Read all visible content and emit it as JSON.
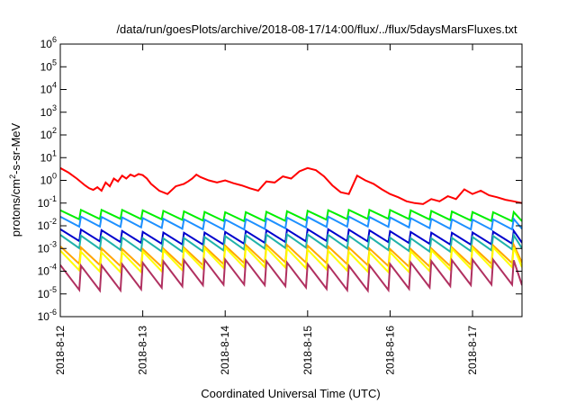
{
  "chart_data": {
    "type": "line",
    "title": "/data/run/goesPlots/archive/2018-08-17/14:00/flux/../flux/5daysMarsFluxes.txt",
    "xlabel": "Coordinated Universal Time (UTC)",
    "ylabel": {
      "pre": "protons/cm",
      "sup": "2",
      "post": "-s-sr-MeV"
    },
    "yscale": "log",
    "ylim": [
      1e-06,
      1000000.0
    ],
    "xlim": [
      0,
      5.6
    ],
    "x_ticks": [
      {
        "x": 0,
        "label": "2018-8-12"
      },
      {
        "x": 1,
        "label": "2018-8-13"
      },
      {
        "x": 2,
        "label": "2018-8-14"
      },
      {
        "x": 3,
        "label": "2018-8-15"
      },
      {
        "x": 4,
        "label": "2018-8-16"
      },
      {
        "x": 5,
        "label": "2018-8-17"
      }
    ],
    "y_ticks": [
      {
        "exp": -6,
        "base": "10",
        "sup": "-6"
      },
      {
        "exp": -5,
        "base": "10",
        "sup": "-5"
      },
      {
        "exp": -4,
        "base": "10",
        "sup": "-4"
      },
      {
        "exp": -3,
        "base": "10",
        "sup": "-3"
      },
      {
        "exp": -2,
        "base": "10",
        "sup": "-2"
      },
      {
        "exp": -1,
        "base": "10",
        "sup": "-1"
      },
      {
        "exp": 0,
        "base": "10",
        "sup": "0"
      },
      {
        "exp": 1,
        "base": "10",
        "sup": "1"
      },
      {
        "exp": 2,
        "base": "10",
        "sup": "2"
      },
      {
        "exp": 3,
        "base": "10",
        "sup": "3"
      },
      {
        "exp": 4,
        "base": "10",
        "sup": "4"
      },
      {
        "exp": 5,
        "base": "10",
        "sup": "5"
      },
      {
        "exp": 6,
        "base": "10",
        "sup": "6"
      }
    ],
    "grid": false,
    "legend": "none",
    "series": [
      {
        "color": "#ff0000",
        "x": [
          0,
          0.1,
          0.2,
          0.3,
          0.35,
          0.4,
          0.45,
          0.5,
          0.55,
          0.6,
          0.65,
          0.7,
          0.75,
          0.8,
          0.85,
          0.9,
          0.95,
          1.0,
          1.05,
          1.1,
          1.15,
          1.2,
          1.3,
          1.4,
          1.5,
          1.55,
          1.6,
          1.65,
          1.7,
          1.8,
          1.9,
          2.0,
          2.1,
          2.2,
          2.3,
          2.4,
          2.5,
          2.6,
          2.7,
          2.8,
          2.9,
          3.0,
          3.1,
          3.2,
          3.3,
          3.4,
          3.5,
          3.6,
          3.7,
          3.8,
          3.9,
          4.0,
          4.1,
          4.2,
          4.3,
          4.4,
          4.5,
          4.6,
          4.7,
          4.8,
          4.9,
          5.0,
          5.1,
          5.2,
          5.3,
          5.4,
          5.5,
          5.6
        ],
        "y": [
          3.5,
          2.2,
          1.2,
          0.6,
          0.45,
          0.38,
          0.5,
          0.35,
          0.8,
          0.55,
          1.2,
          0.9,
          1.6,
          1.2,
          1.8,
          1.5,
          1.9,
          1.7,
          1.2,
          0.7,
          0.5,
          0.35,
          0.25,
          0.55,
          0.7,
          0.9,
          1.2,
          1.8,
          1.4,
          1.0,
          0.8,
          1.0,
          0.75,
          0.6,
          0.45,
          0.35,
          0.9,
          0.8,
          1.5,
          1.2,
          2.5,
          3.5,
          2.8,
          1.5,
          0.6,
          0.3,
          0.25,
          1.6,
          1.0,
          0.7,
          0.4,
          0.25,
          0.18,
          0.12,
          0.1,
          0.09,
          0.15,
          0.12,
          0.2,
          0.15,
          0.4,
          0.25,
          0.35,
          0.22,
          0.18,
          0.14,
          0.12,
          0.1
        ]
      },
      {
        "color": "#00ee00",
        "teeth": true,
        "hi": 0.045,
        "lo": 0.018,
        "amp": 0.12,
        "amp_t": 1.6
      },
      {
        "color": "#1e90ff",
        "teeth": true,
        "hi": 0.022,
        "lo": 0.008,
        "amp": 0.15,
        "amp_t": 1.6
      },
      {
        "color": "#0000cd",
        "teeth": true,
        "hi": 0.006,
        "lo": 0.0018,
        "amp": 0.18,
        "amp_t": 1.6
      },
      {
        "color": "#20b2aa",
        "teeth": true,
        "hi": 0.0035,
        "lo": 0.0009,
        "amp": 0.2,
        "amp_t": 1.6
      },
      {
        "color": "#ffa500",
        "teeth": true,
        "hi": 0.0012,
        "lo": 0.0002,
        "amp": 0.22,
        "amp_t": 1.6
      },
      {
        "color": "#ffff00",
        "teeth": true,
        "hi": 0.0009,
        "lo": 0.00012,
        "amp": 0.25,
        "amp_t": 1.6
      },
      {
        "color": "#b03060",
        "teeth": true,
        "hi": 0.00025,
        "lo": 2e-05,
        "amp": 0.3,
        "amp_t": 1.6
      }
    ]
  }
}
